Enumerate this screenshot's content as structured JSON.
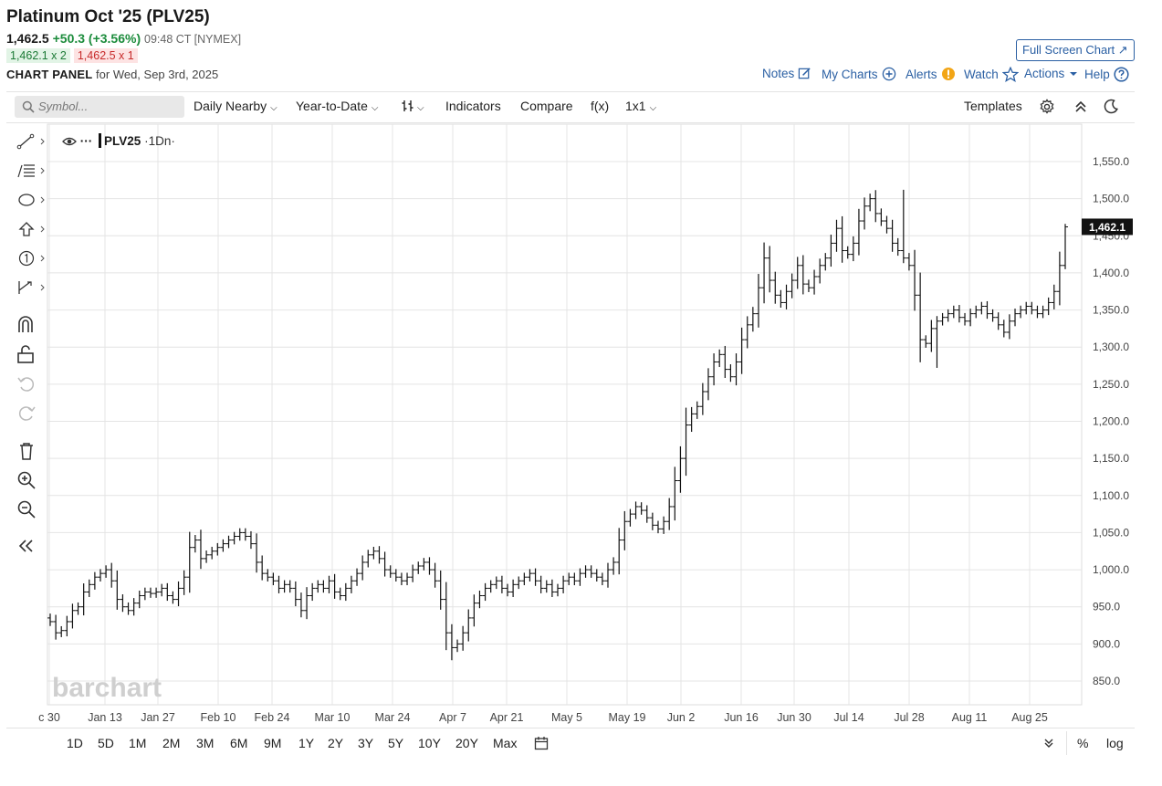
{
  "header": {
    "title": "Platinum Oct '25 (PLV25)",
    "last": "1,462.5",
    "change": "+50.3 (+3.56%)",
    "time": "09:48 CT [NYMEX]",
    "bid": "1,462.1 x 2",
    "ask": "1,462.5 x 1",
    "panel_label": "CHART PANEL",
    "panel_date": "for Wed, Sep 3rd, 2025",
    "full_screen": "Full Screen Chart ↗"
  },
  "links": {
    "notes": "Notes",
    "my_charts": "My Charts",
    "alerts": "Alerts",
    "watch": "Watch",
    "actions": "Actions",
    "help": "Help"
  },
  "toolbar": {
    "search_placeholder": "Symbol...",
    "interval": "Daily Nearby",
    "range": "Year-to-Date",
    "indicators": "Indicators",
    "compare": "Compare",
    "fx": "f(x)",
    "layout": "1x1",
    "templates": "Templates"
  },
  "legend": {
    "symbol": "PLV25",
    "interval": "·1Dn·"
  },
  "watermark": "barchart",
  "periods": [
    "1D",
    "5D",
    "1M",
    "2M",
    "3M",
    "6M",
    "9M",
    "1Y",
    "2Y",
    "3Y",
    "5Y",
    "10Y",
    "20Y",
    "Max"
  ],
  "bottom_right": {
    "percent": "%",
    "log": "log"
  },
  "colors": {
    "accent": "#2a5fa3",
    "up": "#1c8c3c",
    "down": "#c72a2a",
    "bar": "#111111"
  },
  "chart_data": {
    "type": "ohlc",
    "ylim": [
      820,
      1580
    ],
    "yticks": [
      850,
      900,
      950,
      1000,
      1050,
      1100,
      1150,
      1200,
      1250,
      1300,
      1350,
      1400,
      1450,
      1500,
      1550
    ],
    "ytick_labels": [
      "850.0",
      "900.0",
      "950.0",
      "1,000.0",
      "1,050.0",
      "1,100.0",
      "1,150.0",
      "1,200.0",
      "1,250.0",
      "1,300.0",
      "1,350.0",
      "1,400.0",
      "1,450.0",
      "1,500.0",
      "1,550.0"
    ],
    "xticks": [
      "c 30",
      "Jan 13",
      "Jan 27",
      "Feb 10",
      "Feb 24",
      "Mar 10",
      "Mar 24",
      "Apr 7",
      "Apr 21",
      "May 5",
      "May 19",
      "Jun 2",
      "Jun 16",
      "Jun 30",
      "Jul 14",
      "Jul 28",
      "Aug 11",
      "Aug 25"
    ],
    "last_price_label": "1,462.1",
    "last_price": 1462.1,
    "closes": [
      930,
      915,
      918,
      930,
      945,
      950,
      970,
      980,
      990,
      995,
      1000,
      985,
      960,
      950,
      945,
      955,
      965,
      970,
      968,
      970,
      975,
      965,
      960,
      975,
      990,
      1030,
      1040,
      1015,
      1020,
      1025,
      1030,
      1035,
      1040,
      1045,
      1050,
      1045,
      1035,
      1010,
      995,
      990,
      985,
      975,
      980,
      975,
      960,
      945,
      965,
      975,
      980,
      975,
      985,
      970,
      965,
      975,
      985,
      995,
      1010,
      1020,
      1025,
      1015,
      1000,
      995,
      990,
      985,
      990,
      1000,
      1005,
      1010,
      1000,
      985,
      960,
      915,
      895,
      900,
      915,
      935,
      955,
      965,
      975,
      980,
      985,
      975,
      970,
      980,
      985,
      990,
      995,
      985,
      975,
      980,
      970,
      975,
      985,
      990,
      985,
      995,
      1000,
      995,
      990,
      985,
      1000,
      1010,
      1040,
      1065,
      1075,
      1085,
      1080,
      1070,
      1060,
      1055,
      1065,
      1085,
      1120,
      1150,
      1195,
      1210,
      1220,
      1240,
      1260,
      1280,
      1290,
      1270,
      1260,
      1280,
      1310,
      1330,
      1345,
      1380,
      1420,
      1390,
      1370,
      1360,
      1375,
      1390,
      1410,
      1385,
      1380,
      1395,
      1410,
      1420,
      1440,
      1460,
      1430,
      1425,
      1440,
      1470,
      1490,
      1500,
      1480,
      1470,
      1460,
      1440,
      1430,
      1420,
      1410,
      1370,
      1310,
      1305,
      1325,
      1335,
      1340,
      1345,
      1350,
      1340,
      1335,
      1345,
      1350,
      1355,
      1345,
      1340,
      1330,
      1320,
      1335,
      1345,
      1350,
      1355,
      1350,
      1345,
      1350,
      1360,
      1375,
      1410,
      1462
    ]
  }
}
